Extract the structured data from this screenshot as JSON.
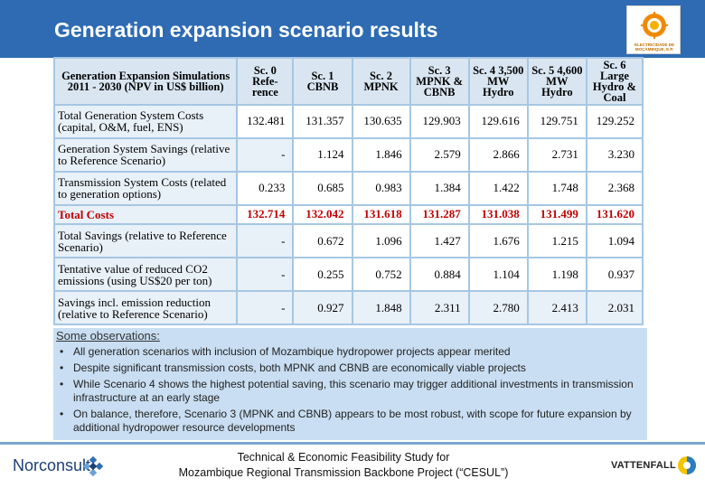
{
  "header": {
    "title": "Generation expansion scenario results",
    "logo_text": "ELECTRICIDADE DE MOÇAMBIQUE, E.P.",
    "bg_color": "#2e6bb3"
  },
  "table": {
    "corner_header": "Generation Expansion Simulations 2011 - 2030 (NPV in US$ billion)",
    "columns": [
      "Sc. 0 Refe- rence",
      "Sc. 1 CBNB",
      "Sc. 2 MPNK",
      "Sc. 3 MPNK & CBNB",
      "Sc. 4 3,500 MW Hydro",
      "Sc. 5 4,600 MW Hydro",
      "Sc. 6 Large Hydro & Coal"
    ],
    "rows": [
      {
        "label": "Total Generation System Costs (capital, O&M, fuel, ENS)",
        "values": [
          "132.481",
          "131.357",
          "130.635",
          "129.903",
          "129.616",
          "129.751",
          "129.252"
        ]
      },
      {
        "label": "Generation System Savings (relative to Reference Scenario)",
        "values": [
          "-",
          "1.124",
          "1.846",
          "2.579",
          "2.866",
          "2.731",
          "3.230"
        ]
      },
      {
        "label": "Transmission System Costs (related to generation options)",
        "values": [
          "0.233",
          "0.685",
          "0.983",
          "1.384",
          "1.422",
          "1.748",
          "2.368"
        ]
      },
      {
        "label": "Total Costs",
        "values": [
          "132.714",
          "132.042",
          "131.618",
          "131.287",
          "131.038",
          "131.499",
          "131.620"
        ]
      },
      {
        "label": "Total Savings (relative to Reference Scenario)",
        "values": [
          "-",
          "0.672",
          "1.096",
          "1.427",
          "1.676",
          "1.215",
          "1.094"
        ]
      },
      {
        "label": "Tentative value of reduced CO2 emissions (using US$20 per ton)",
        "values": [
          "-",
          "0.255",
          "0.752",
          "0.884",
          "1.104",
          "1.198",
          "0.937"
        ]
      },
      {
        "label": "Savings incl. emission reduction (relative to Reference Scenario)",
        "values": [
          "-",
          "0.927",
          "1.848",
          "2.311",
          "2.780",
          "2.413",
          "2.031"
        ]
      }
    ]
  },
  "observations": {
    "title": "Some observations:",
    "items": [
      "All generation scenarios with inclusion of Mozambique hydropower projects appear merited",
      "Despite significant transmission costs, both MPNK and CBNB are economically viable projects",
      "While Scenario 4 shows the highest potential saving, this scenario may trigger additional investments in transmission infrastructure at an early stage",
      "On balance, therefore, Scenario 3 (MPNK and CBNB) appears to be most robust, with scope for future expansion by additional hydropower resource developments"
    ]
  },
  "footer": {
    "left_brand": "Norconsult",
    "line1": "Technical & Economic Feasibility Study for",
    "line2": "Mozambique Regional Transmission Backbone Project (“CESUL”)",
    "right_brand": "VATTENFALL"
  }
}
